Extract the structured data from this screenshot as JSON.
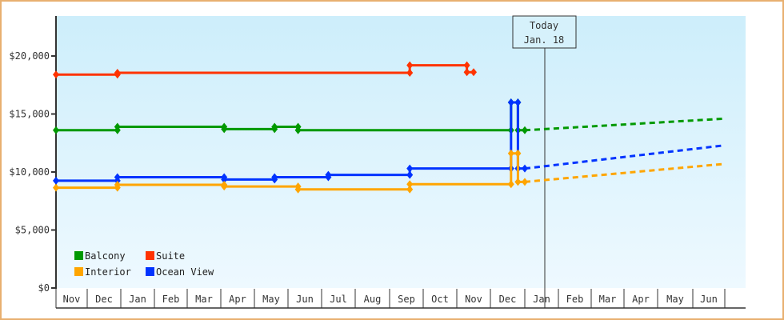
{
  "chart_data": {
    "type": "line",
    "title": "",
    "xlabel": "",
    "ylabel": "",
    "ylim": [
      0,
      23000
    ],
    "y_ticks": [
      "$0",
      "$5,000",
      "$10,000",
      "$15,000",
      "$20,000"
    ],
    "y_tick_values": [
      0,
      5000,
      10000,
      15000,
      20000
    ],
    "x_tick_labels": [
      "Nov",
      "Dec",
      "Jan",
      "Feb",
      "Mar",
      "Apr",
      "May",
      "Jun",
      "Jul",
      "Aug",
      "Sep",
      "Oct",
      "Nov",
      "Dec",
      "Jan",
      "Feb",
      "Mar",
      "Apr",
      "May",
      "Jun"
    ],
    "today_marker": {
      "line1": "Today",
      "line2": "Jan. 18",
      "month_index": 14.0
    },
    "legend": [
      {
        "name": "Balcony",
        "color": "#009900"
      },
      {
        "name": "Suite",
        "color": "#ff3300"
      },
      {
        "name": "Interior",
        "color": "#ffa500"
      },
      {
        "name": "Ocean View",
        "color": "#0033ff"
      }
    ],
    "series": [
      {
        "name": "Suite",
        "color": "#ff3300",
        "points": [
          [
            0.0,
            18400
          ],
          [
            1.9,
            18400
          ],
          [
            1.9,
            18550
          ],
          [
            5.1,
            18550
          ],
          [
            6.6,
            18550
          ],
          [
            10.6,
            18550
          ],
          [
            10.6,
            19200
          ],
          [
            12.3,
            19200
          ],
          [
            12.3,
            18600
          ],
          [
            12.5,
            18600
          ]
        ],
        "forecast": []
      },
      {
        "name": "Balcony",
        "color": "#009900",
        "points": [
          [
            0.0,
            13600
          ],
          [
            1.9,
            13600
          ],
          [
            1.9,
            13900
          ],
          [
            5.1,
            13900
          ],
          [
            5.1,
            13700
          ],
          [
            6.6,
            13700
          ],
          [
            6.6,
            13900
          ],
          [
            7.3,
            13900
          ],
          [
            7.3,
            13600
          ],
          [
            8.2,
            13600
          ],
          [
            13.6,
            13600
          ],
          [
            13.6,
            16000
          ],
          [
            13.8,
            16000
          ],
          [
            13.8,
            13600
          ],
          [
            14.0,
            13600
          ]
        ],
        "forecast": [
          [
            14.0,
            13600
          ],
          [
            20.0,
            14600
          ]
        ]
      },
      {
        "name": "Ocean View",
        "color": "#0033ff",
        "points": [
          [
            0.0,
            9250
          ],
          [
            1.9,
            9250
          ],
          [
            1.9,
            9550
          ],
          [
            5.1,
            9550
          ],
          [
            5.1,
            9350
          ],
          [
            6.6,
            9350
          ],
          [
            6.6,
            9550
          ],
          [
            8.2,
            9550
          ],
          [
            8.2,
            9750
          ],
          [
            10.6,
            9750
          ],
          [
            10.6,
            10300
          ],
          [
            13.6,
            10300
          ],
          [
            13.6,
            16000
          ],
          [
            13.8,
            16000
          ],
          [
            13.8,
            10300
          ],
          [
            14.0,
            10300
          ]
        ],
        "forecast": [
          [
            14.0,
            10300
          ],
          [
            20.0,
            12300
          ]
        ]
      },
      {
        "name": "Interior",
        "color": "#ffa500",
        "points": [
          [
            0.0,
            8650
          ],
          [
            1.9,
            8650
          ],
          [
            1.9,
            8900
          ],
          [
            5.1,
            8900
          ],
          [
            5.1,
            8750
          ],
          [
            6.6,
            8750
          ],
          [
            7.3,
            8750
          ],
          [
            7.3,
            8500
          ],
          [
            10.6,
            8500
          ],
          [
            10.6,
            8950
          ],
          [
            13.6,
            8950
          ],
          [
            13.6,
            11600
          ],
          [
            13.8,
            11600
          ],
          [
            13.8,
            9150
          ],
          [
            14.0,
            9150
          ]
        ],
        "forecast": [
          [
            14.0,
            9150
          ],
          [
            20.0,
            10700
          ]
        ]
      }
    ],
    "grid": false,
    "legend_position": "lower-left inside plot",
    "background": "gradient light blue (#cdeffc top to #eef9ff bottom)"
  }
}
